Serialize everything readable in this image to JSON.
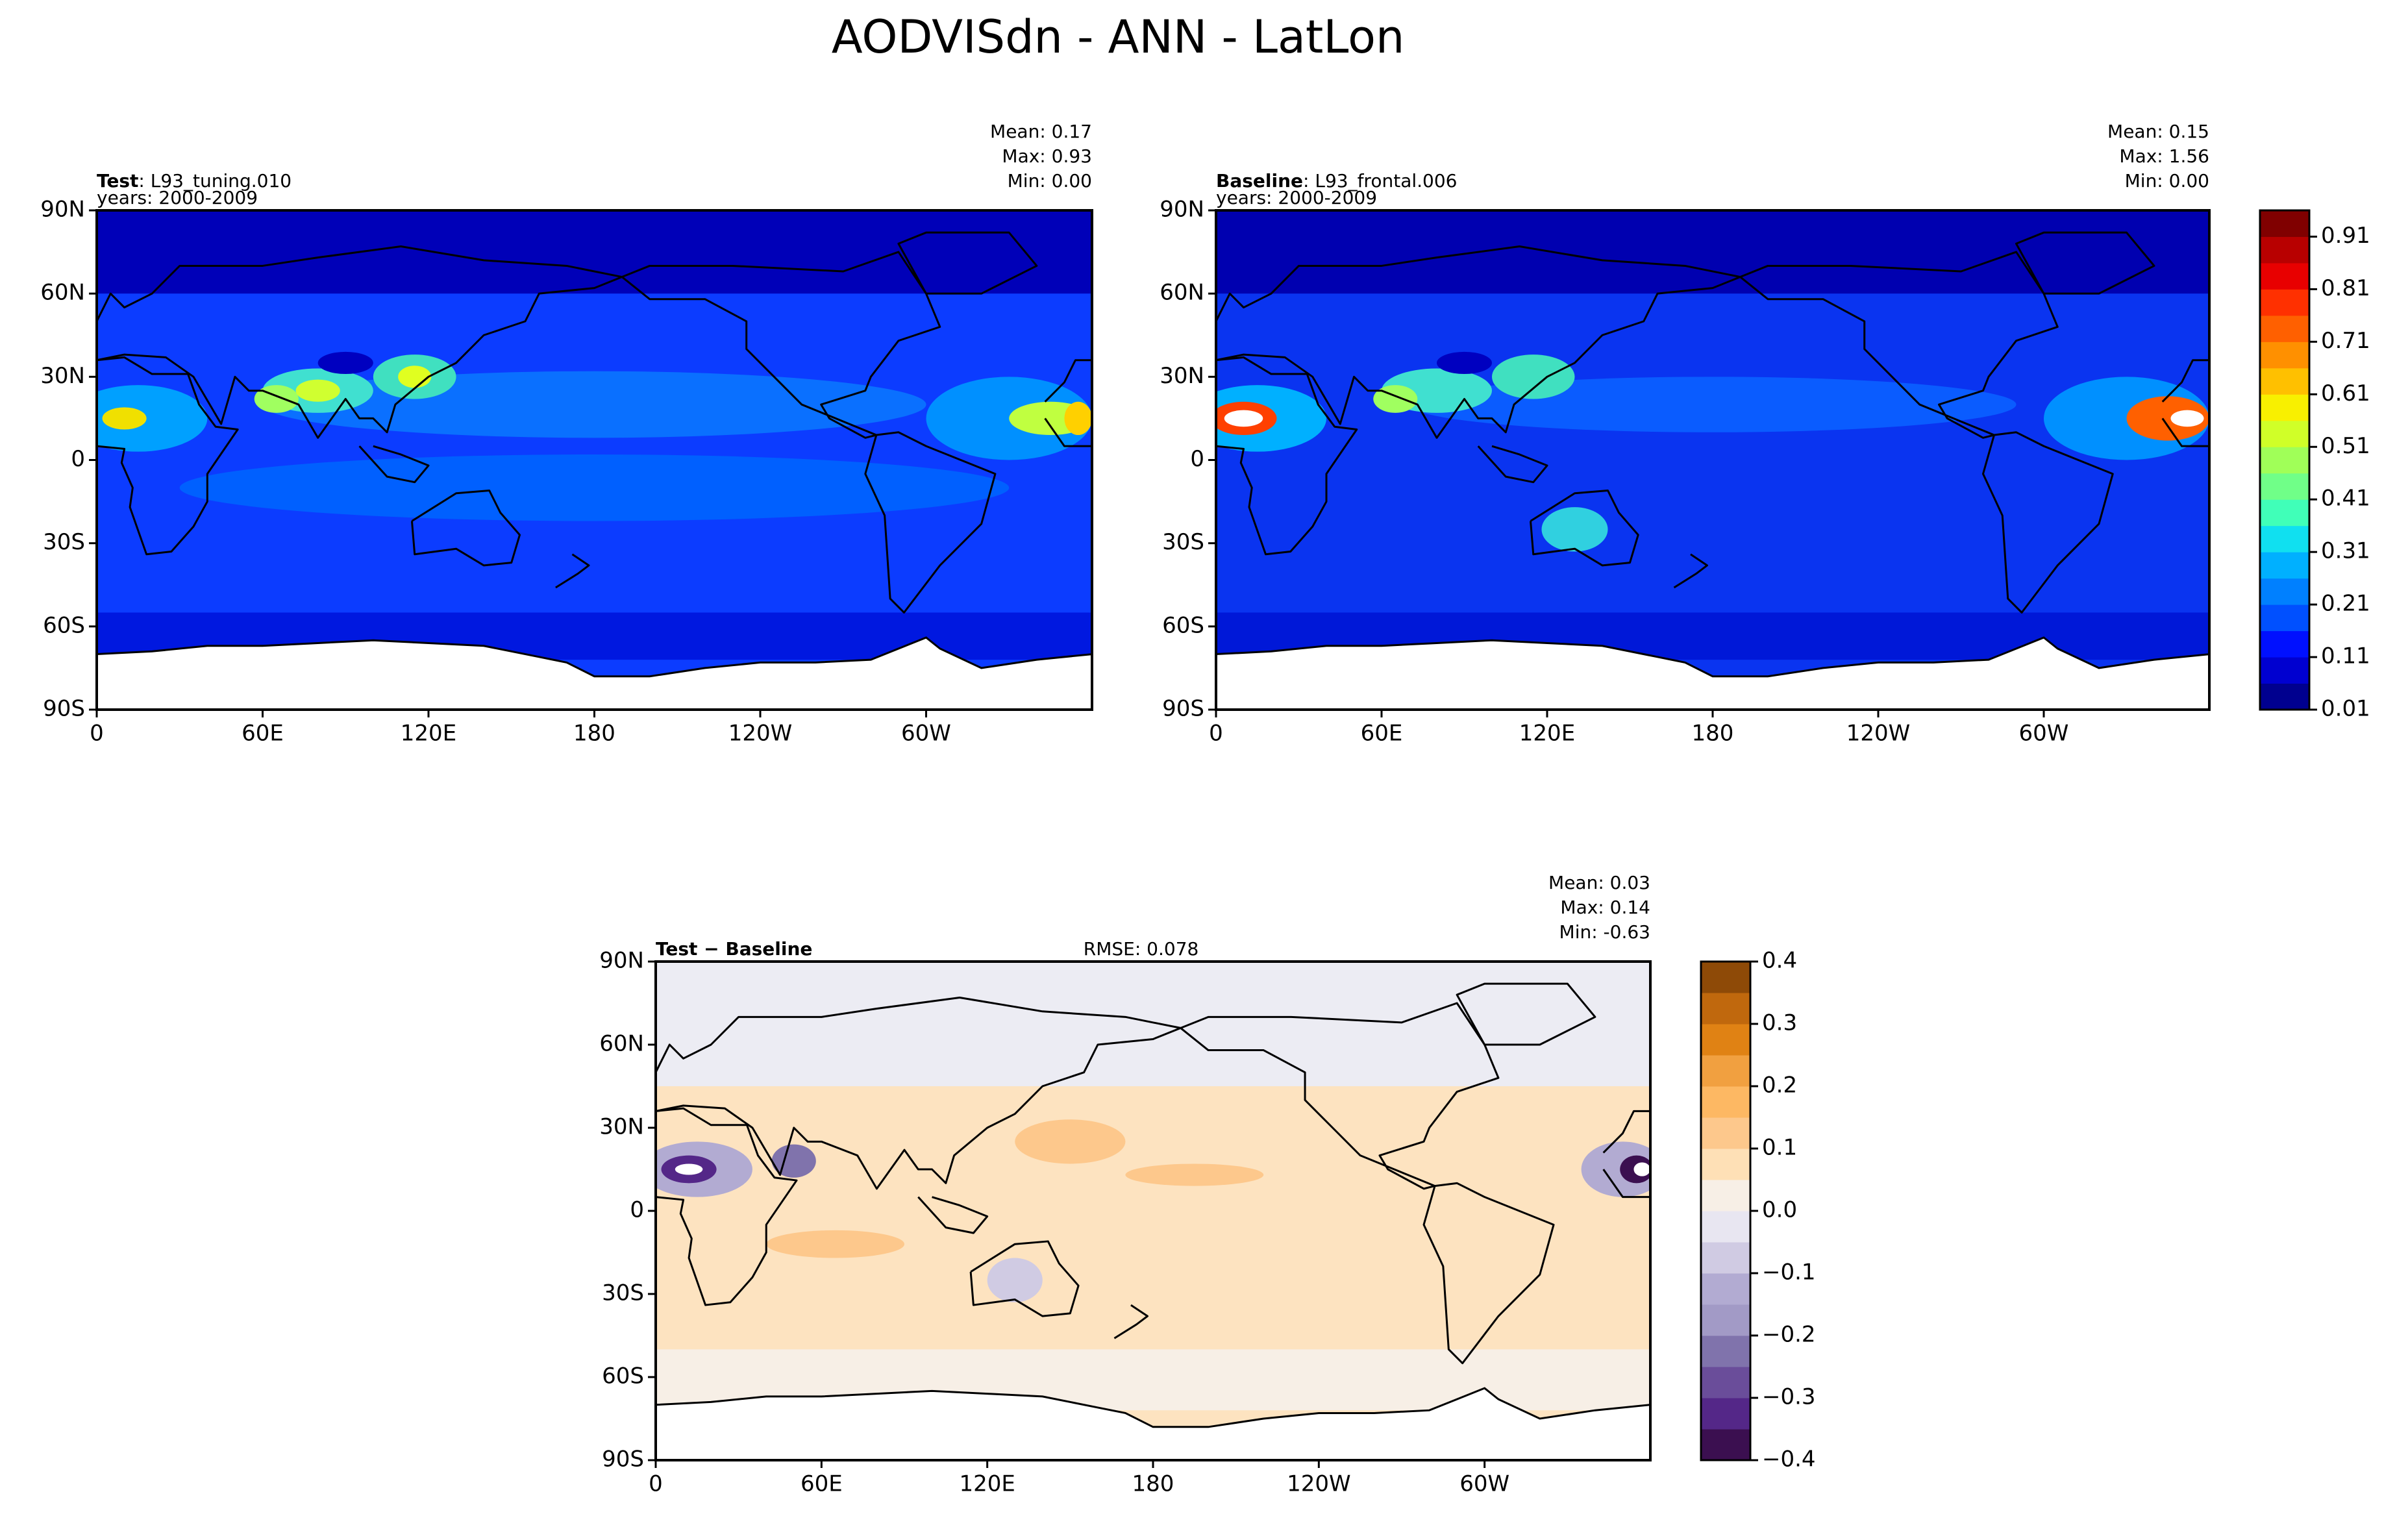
{
  "title": "AODVISdn - ANN - LatLon",
  "chart_data": [
    {
      "type": "contourf",
      "label": "Test",
      "case": ": L93_tuning.010",
      "years": "years: 2000-2009",
      "stats": [
        "Mean:  0.17",
        "Max:  0.93",
        "Min:  0.00"
      ],
      "xlim": [
        0,
        360
      ],
      "xticks": [
        0,
        {
          "value": 60,
          "label": "60E"
        },
        {
          "value": 120,
          "label": "120E"
        },
        180,
        {
          "value": 240,
          "label": "120W"
        },
        {
          "value": 300,
          "label": "60W"
        }
      ],
      "ylim": [
        -90,
        90
      ],
      "yticks": [
        {
          "value": -90,
          "label": "90S"
        },
        {
          "value": -60,
          "label": "60S"
        },
        {
          "value": -30,
          "label": "30S"
        },
        0,
        {
          "value": 30,
          "label": "30N"
        },
        {
          "value": 60,
          "label": "60N"
        },
        {
          "value": 90,
          "label": "90N"
        }
      ]
    },
    {
      "type": "contourf",
      "label": "Baseline",
      "case": ": L93_frontal.006",
      "years": "years: 2000-2009",
      "stats": [
        "Mean:  0.15",
        "Max:  1.56",
        "Min:  0.00"
      ],
      "xlim": [
        0,
        360
      ],
      "xticks": [
        0,
        {
          "value": 60,
          "label": "60E"
        },
        {
          "value": 120,
          "label": "120E"
        },
        180,
        {
          "value": 240,
          "label": "120W"
        },
        {
          "value": 300,
          "label": "60W"
        }
      ],
      "ylim": [
        -90,
        90
      ],
      "yticks": [
        {
          "value": -90,
          "label": "90S"
        },
        {
          "value": -60,
          "label": "60S"
        },
        {
          "value": -30,
          "label": "30S"
        },
        0,
        {
          "value": 30,
          "label": "30N"
        },
        {
          "value": 60,
          "label": "60N"
        },
        {
          "value": 90,
          "label": "90N"
        }
      ],
      "colorbar": {
        "levels": [
          0.01,
          0.06,
          0.11,
          0.16,
          0.21,
          0.26,
          0.31,
          0.36,
          0.41,
          0.46,
          0.51,
          0.56,
          0.61,
          0.66,
          0.71,
          0.76,
          0.81,
          0.86,
          0.91,
          0.96
        ],
        "colors": [
          "#00008f",
          "#0000d0",
          "#0010ff",
          "#0050ff",
          "#0080ff",
          "#00b0ff",
          "#10e0f0",
          "#40ffb8",
          "#70ff88",
          "#a0ff58",
          "#d0ff28",
          "#f8f000",
          "#ffc000",
          "#ff9000",
          "#ff6000",
          "#ff3000",
          "#e80000",
          "#b80000",
          "#800000"
        ],
        "ylim": [
          0.01,
          0.96
        ],
        "ticks": [
          0.01,
          0.11,
          0.21,
          0.31,
          0.41,
          0.51,
          0.61,
          0.71,
          0.81,
          0.91
        ]
      }
    },
    {
      "type": "contourf",
      "label": "Test − Baseline",
      "rmse": "RMSE: 0.078",
      "stats": [
        "Mean:  0.03",
        "Max:  0.14",
        "Min: -0.63"
      ],
      "xlim": [
        0,
        360
      ],
      "xticks": [
        0,
        {
          "value": 60,
          "label": "60E"
        },
        {
          "value": 120,
          "label": "120E"
        },
        180,
        {
          "value": 240,
          "label": "120W"
        },
        {
          "value": 300,
          "label": "60W"
        }
      ],
      "ylim": [
        -90,
        90
      ],
      "yticks": [
        {
          "value": -90,
          "label": "90S"
        },
        {
          "value": -60,
          "label": "60S"
        },
        {
          "value": -30,
          "label": "30S"
        },
        0,
        {
          "value": 30,
          "label": "30N"
        },
        {
          "value": 60,
          "label": "60N"
        },
        {
          "value": 90,
          "label": "90N"
        }
      ],
      "colorbar": {
        "levels": [
          -0.4,
          -0.35,
          -0.3,
          -0.25,
          -0.2,
          -0.15,
          -0.1,
          -0.05,
          0,
          0.05,
          0.1,
          0.15,
          0.2,
          0.25,
          0.3,
          0.35,
          0.4
        ],
        "colors": [
          "#3b0f50",
          "#542788",
          "#6a4d9a",
          "#8073ac",
          "#a29ac6",
          "#b2abd2",
          "#d0cbe3",
          "#e8e6f1",
          "#f7efe6",
          "#fee0b6",
          "#fdc88c",
          "#fdb863",
          "#f1a040",
          "#e08214",
          "#c0680d",
          "#8e4a07"
        ],
        "ylim": [
          -0.4,
          0.4
        ],
        "ticks": [
          {
            "value": -0.4,
            "label": "−0.4"
          },
          {
            "value": -0.3,
            "label": "−0.3"
          },
          {
            "value": -0.2,
            "label": "−0.2"
          },
          {
            "value": -0.1,
            "label": "−0.1"
          },
          {
            "value": 0,
            "label": "0.0"
          },
          0.1,
          0.2,
          0.3,
          0.4
        ]
      }
    }
  ]
}
